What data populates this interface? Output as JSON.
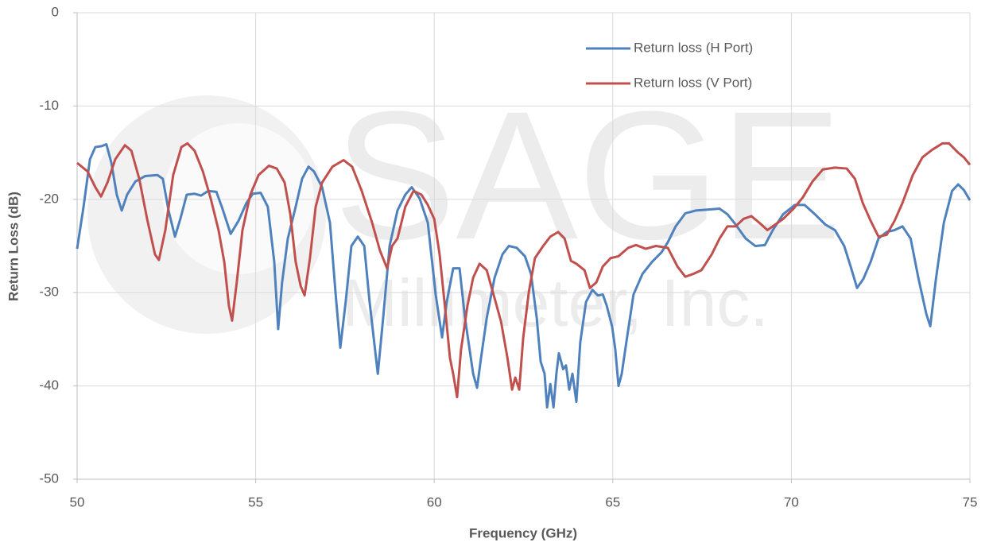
{
  "chart_data": {
    "type": "line",
    "watermark": [
      "SAGE",
      "Millimeter, Inc."
    ],
    "xlabel": "Frequency (GHz)",
    "ylabel": "Return Loss (dB)",
    "xlim": [
      50,
      75
    ],
    "xticks": [
      50,
      55,
      60,
      65,
      70,
      75
    ],
    "ylim": [
      -50,
      0
    ],
    "yticks": [
      -50,
      -40,
      -30,
      -20,
      -10,
      0
    ],
    "grid": true,
    "legend": "upper right",
    "series": [
      {
        "name": "Return loss (H Port)",
        "color": "#4f81bd",
        "x": [
          50.0,
          50.18,
          50.36,
          50.51,
          50.69,
          50.82,
          50.96,
          51.11,
          51.25,
          51.4,
          51.63,
          51.91,
          52.25,
          52.4,
          52.56,
          52.74,
          52.89,
          53.07,
          53.29,
          53.47,
          53.67,
          53.9,
          54.07,
          54.3,
          54.52,
          54.74,
          54.92,
          55.14,
          55.34,
          55.52,
          55.63,
          55.74,
          55.9,
          56.12,
          56.3,
          56.48,
          56.63,
          56.86,
          57.08,
          57.24,
          57.37,
          57.52,
          57.68,
          57.86,
          58.04,
          58.19,
          58.42,
          58.57,
          58.75,
          58.97,
          59.19,
          59.37,
          59.59,
          59.82,
          60.04,
          60.22,
          60.35,
          60.53,
          60.71,
          60.86,
          61.09,
          61.2,
          61.31,
          61.47,
          61.69,
          61.91,
          62.09,
          62.31,
          62.54,
          62.71,
          62.87,
          62.98,
          63.09,
          63.16,
          63.25,
          63.34,
          63.42,
          63.49,
          63.61,
          63.69,
          63.78,
          63.87,
          63.98,
          64.09,
          64.25,
          64.43,
          64.58,
          64.72,
          64.83,
          64.98,
          65.07,
          65.16,
          65.25,
          65.38,
          65.58,
          65.83,
          66.1,
          66.36,
          66.54,
          66.76,
          67.03,
          67.32,
          67.65,
          67.99,
          68.21,
          68.44,
          68.72,
          68.99,
          69.26,
          69.48,
          69.77,
          70.1,
          70.37,
          70.66,
          70.95,
          71.22,
          71.48,
          71.66,
          71.84,
          72.02,
          72.22,
          72.44,
          72.67,
          72.89,
          73.11,
          73.34,
          73.56,
          73.78,
          73.89,
          74.05,
          74.27,
          74.5,
          74.67,
          74.83,
          75.0
        ],
        "values": [
          -25.3,
          -20.8,
          -15.7,
          -14.4,
          -14.3,
          -14.1,
          -16.1,
          -19.5,
          -21.2,
          -19.5,
          -18.1,
          -17.5,
          -17.4,
          -17.8,
          -21.2,
          -24.0,
          -22.1,
          -19.5,
          -19.4,
          -19.6,
          -19.1,
          -19.2,
          -21.0,
          -23.7,
          -22.3,
          -20.4,
          -19.4,
          -19.3,
          -20.8,
          -26.7,
          -33.9,
          -28.9,
          -24.2,
          -20.8,
          -17.8,
          -16.5,
          -17.0,
          -18.7,
          -22.5,
          -30.2,
          -35.9,
          -31.0,
          -25.0,
          -24.0,
          -25.0,
          -31.0,
          -38.7,
          -32.7,
          -25.0,
          -21.2,
          -19.5,
          -18.7,
          -19.9,
          -22.5,
          -30.2,
          -34.8,
          -31.0,
          -27.4,
          -27.4,
          -32.7,
          -38.7,
          -40.2,
          -37.0,
          -32.7,
          -28.4,
          -25.9,
          -25.0,
          -25.2,
          -26.1,
          -28.0,
          -32.7,
          -37.4,
          -38.7,
          -42.3,
          -39.8,
          -42.3,
          -38.7,
          -36.5,
          -38.2,
          -37.8,
          -40.4,
          -38.7,
          -41.7,
          -35.3,
          -31.0,
          -29.7,
          -30.3,
          -30.2,
          -31.4,
          -33.6,
          -36.1,
          -40.0,
          -38.7,
          -35.3,
          -30.2,
          -28.0,
          -26.7,
          -25.7,
          -24.6,
          -22.9,
          -21.5,
          -21.2,
          -21.1,
          -21.0,
          -21.6,
          -22.7,
          -24.2,
          -25.0,
          -24.9,
          -23.3,
          -21.6,
          -20.6,
          -20.6,
          -21.6,
          -22.7,
          -23.3,
          -25.0,
          -27.2,
          -29.5,
          -28.5,
          -26.7,
          -24.2,
          -23.5,
          -23.3,
          -22.9,
          -24.2,
          -28.5,
          -32.3,
          -33.6,
          -28.5,
          -22.5,
          -19.1,
          -18.4,
          -19.0,
          -20.1
        ]
      },
      {
        "name": "Return loss (V Port)",
        "color": "#c0504d",
        "x": [
          50.0,
          50.29,
          50.51,
          50.67,
          50.85,
          51.07,
          51.34,
          51.52,
          51.74,
          51.96,
          52.18,
          52.29,
          52.47,
          52.69,
          52.92,
          53.09,
          53.29,
          53.52,
          53.74,
          53.96,
          54.12,
          54.25,
          54.34,
          54.47,
          54.63,
          54.85,
          55.08,
          55.37,
          55.59,
          55.81,
          55.97,
          56.12,
          56.26,
          56.37,
          56.52,
          56.68,
          56.86,
          57.15,
          57.46,
          57.7,
          57.97,
          58.26,
          58.48,
          58.68,
          58.82,
          58.97,
          59.19,
          59.42,
          59.64,
          59.82,
          60.0,
          60.15,
          60.31,
          60.44,
          60.53,
          60.64,
          60.75,
          60.93,
          61.09,
          61.27,
          61.47,
          61.69,
          61.87,
          62.05,
          62.18,
          62.27,
          62.38,
          62.49,
          62.65,
          62.82,
          63.05,
          63.25,
          63.47,
          63.65,
          63.83,
          63.98,
          64.21,
          64.36,
          64.54,
          64.72,
          64.94,
          65.16,
          65.43,
          65.65,
          65.92,
          66.21,
          66.54,
          66.81,
          67.03,
          67.25,
          67.48,
          67.77,
          67.99,
          68.21,
          68.44,
          68.66,
          68.88,
          69.1,
          69.33,
          69.55,
          69.77,
          70.06,
          70.32,
          70.59,
          70.88,
          71.22,
          71.55,
          71.78,
          72.0,
          72.22,
          72.44,
          72.67,
          72.89,
          73.11,
          73.4,
          73.67,
          73.94,
          74.23,
          74.41,
          74.67,
          74.83,
          75.0
        ],
        "values": [
          -16.1,
          -17.0,
          -18.7,
          -19.7,
          -18.2,
          -15.7,
          -14.2,
          -14.8,
          -17.8,
          -22.1,
          -25.9,
          -26.5,
          -23.3,
          -17.4,
          -14.4,
          -14.0,
          -14.8,
          -17.0,
          -19.9,
          -23.3,
          -26.7,
          -31.4,
          -33.0,
          -28.9,
          -23.3,
          -19.5,
          -17.4,
          -16.4,
          -16.7,
          -18.2,
          -21.6,
          -26.7,
          -29.3,
          -30.3,
          -26.3,
          -20.8,
          -18.2,
          -16.5,
          -15.8,
          -16.5,
          -19.1,
          -22.5,
          -25.5,
          -27.4,
          -25.0,
          -24.2,
          -20.8,
          -19.1,
          -19.5,
          -20.6,
          -22.1,
          -25.9,
          -31.9,
          -37.0,
          -38.7,
          -41.2,
          -36.1,
          -31.4,
          -28.4,
          -26.9,
          -27.6,
          -30.6,
          -33.1,
          -37.0,
          -40.4,
          -39.1,
          -40.4,
          -34.9,
          -29.9,
          -26.3,
          -25.0,
          -24.0,
          -23.5,
          -24.2,
          -26.6,
          -26.9,
          -27.6,
          -29.5,
          -28.9,
          -27.2,
          -26.3,
          -26.1,
          -25.2,
          -24.9,
          -25.3,
          -25.0,
          -25.2,
          -27.2,
          -28.3,
          -28.0,
          -27.6,
          -25.9,
          -24.2,
          -22.9,
          -22.9,
          -22.1,
          -21.8,
          -22.5,
          -23.3,
          -22.7,
          -22.1,
          -21.0,
          -19.8,
          -18.1,
          -16.8,
          -16.6,
          -16.7,
          -17.8,
          -20.4,
          -22.3,
          -24.0,
          -23.8,
          -22.3,
          -20.4,
          -17.4,
          -15.5,
          -14.7,
          -14.0,
          -14.0,
          -15.0,
          -15.5,
          -16.3
        ]
      }
    ]
  }
}
